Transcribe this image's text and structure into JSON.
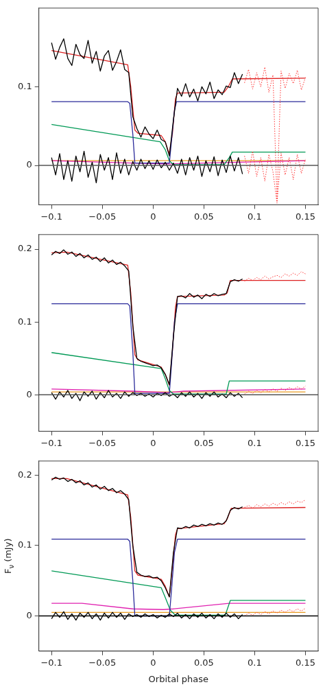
{
  "chart_data": [
    {
      "type": "line",
      "xlim": [
        -0.1125,
        0.1625
      ],
      "ylim": [
        -0.05,
        0.2
      ],
      "xticks": [
        -0.1,
        -0.05,
        0,
        0.05,
        0.1,
        0.15
      ],
      "yticks": [
        0,
        0.1
      ],
      "grid": false,
      "legend": false,
      "marker": "none",
      "ref_lines": [
        {
          "axis": "y",
          "value": 0,
          "color": "#555555"
        }
      ],
      "series": [
        {
          "color": "#000000",
          "line_style": "solid",
          "x": [
            -0.1,
            -0.096,
            -0.092,
            -0.088,
            -0.084,
            -0.08,
            -0.076,
            -0.072,
            -0.068,
            -0.064,
            -0.06,
            -0.056,
            -0.052,
            -0.048,
            -0.044,
            -0.04,
            -0.036,
            -0.032,
            -0.028,
            -0.024,
            -0.02,
            -0.016,
            -0.012,
            -0.008,
            -0.004,
            0,
            0.004,
            0.008,
            0.012,
            0.016,
            0.02,
            0.024,
            0.028,
            0.032,
            0.036,
            0.04,
            0.044,
            0.048,
            0.052,
            0.056,
            0.06,
            0.064,
            0.068,
            0.072,
            0.076,
            0.08,
            0.084,
            0.088
          ],
          "values": [
            0.156,
            0.135,
            0.15,
            0.161,
            0.136,
            0.127,
            0.154,
            0.141,
            0.136,
            0.159,
            0.13,
            0.145,
            0.12,
            0.139,
            0.146,
            0.121,
            0.132,
            0.147,
            0.122,
            0.118,
            0.062,
            0.047,
            0.036,
            0.049,
            0.04,
            0.034,
            0.045,
            0.033,
            0.03,
            0.012,
            0.058,
            0.098,
            0.088,
            0.104,
            0.087,
            0.097,
            0.082,
            0.1,
            0.091,
            0.106,
            0.085,
            0.096,
            0.09,
            0.101,
            0.099,
            0.118,
            0.104,
            0.116
          ]
        },
        {
          "color": "#ff3333",
          "line_style": "dotted",
          "x": [
            0.09,
            0.094,
            0.098,
            0.102,
            0.106,
            0.11,
            0.114,
            0.118,
            0.122,
            0.126,
            0.13,
            0.134,
            0.138,
            0.142,
            0.146,
            0.15
          ],
          "values": [
            0.105,
            0.122,
            0.097,
            0.118,
            0.1,
            0.125,
            0.093,
            0.115,
            -0.045,
            0.12,
            0.098,
            0.117,
            0.104,
            0.121,
            0.096,
            0.112
          ]
        },
        {
          "color": "#000000",
          "line_style": "solid",
          "x": [
            -0.1,
            -0.096,
            -0.092,
            -0.088,
            -0.084,
            -0.08,
            -0.076,
            -0.072,
            -0.068,
            -0.064,
            -0.06,
            -0.056,
            -0.052,
            -0.048,
            -0.044,
            -0.04,
            -0.036,
            -0.032,
            -0.028,
            -0.024,
            -0.02,
            -0.016,
            -0.012,
            -0.008,
            -0.004,
            0,
            0.004,
            0.008,
            0.012,
            0.016,
            0.02,
            0.024,
            0.028,
            0.032,
            0.036,
            0.04,
            0.044,
            0.048,
            0.052,
            0.056,
            0.06,
            0.064,
            0.068,
            0.072,
            0.076,
            0.08,
            0.084,
            0.088
          ],
          "values": [
            0.01,
            -0.012,
            0.015,
            -0.018,
            0.006,
            -0.02,
            0.012,
            -0.008,
            0.018,
            -0.015,
            0.004,
            -0.022,
            0.014,
            -0.006,
            0.01,
            -0.018,
            0.016,
            -0.01,
            0.008,
            -0.012,
            0.005,
            -0.006,
            0.008,
            -0.004,
            0.006,
            -0.005,
            0.007,
            -0.003,
            0.004,
            -0.006,
            0.003,
            -0.01,
            0.008,
            -0.012,
            0.01,
            -0.006,
            0.012,
            -0.014,
            0.006,
            -0.008,
            0.011,
            -0.013,
            0.007,
            -0.009,
            0.012,
            -0.007,
            0.01,
            -0.011
          ]
        },
        {
          "color": "#ff3333",
          "line_style": "dotted",
          "x": [
            0.09,
            0.094,
            0.098,
            0.102,
            0.106,
            0.11,
            0.114,
            0.118,
            0.122,
            0.126,
            0.13,
            0.134,
            0.138,
            0.142,
            0.146,
            0.15
          ],
          "values": [
            0.012,
            -0.01,
            0.018,
            -0.014,
            0.01,
            -0.02,
            0.014,
            -0.008,
            -0.048,
            0.016,
            -0.012,
            0.01,
            -0.018,
            0.014,
            -0.01,
            0.008
          ]
        },
        {
          "color": "#2a2a9a",
          "line_style": "solid",
          "x": [
            -0.1,
            -0.025,
            -0.023,
            -0.02,
            -0.018,
            0.016,
            0.018,
            0.021,
            0.023,
            0.15
          ],
          "values": [
            0.081,
            0.081,
            0.079,
            0.04,
            0.003,
            0.003,
            0.03,
            0.07,
            0.081,
            0.081
          ]
        },
        {
          "color": "#009955",
          "line_style": "solid",
          "x": [
            -0.1,
            0.007,
            0.012,
            0.016,
            0.02,
            0.07,
            0.075,
            0.078,
            0.15
          ],
          "values": [
            0.052,
            0.03,
            0.02,
            0.006,
            0.001,
            0.001,
            0.01,
            0.017,
            0.017
          ]
        },
        {
          "color": "#e020b0",
          "line_style": "solid",
          "x": [
            -0.1,
            -0.02,
            0.015,
            0.15
          ],
          "values": [
            0.006,
            0.003,
            0.002,
            0.006
          ]
        },
        {
          "color": "#e89a20",
          "line_style": "solid",
          "x": [
            -0.1,
            0.15
          ],
          "values": [
            0.006,
            0.006
          ]
        },
        {
          "color": "#dd2222",
          "line_style": "solid",
          "x": [
            -0.1,
            -0.025,
            -0.022,
            -0.018,
            -0.015,
            0.008,
            0.012,
            0.015,
            0.016,
            0.019,
            0.022,
            0.024,
            0.07,
            0.074,
            0.078,
            0.15
          ],
          "values": [
            0.146,
            0.128,
            0.1,
            0.045,
            0.041,
            0.038,
            0.03,
            0.018,
            0.016,
            0.04,
            0.085,
            0.092,
            0.093,
            0.1,
            0.11,
            0.111
          ]
        }
      ]
    },
    {
      "type": "line",
      "xlim": [
        -0.1125,
        0.1625
      ],
      "ylim": [
        -0.05,
        0.22
      ],
      "xticks": [
        -0.1,
        -0.05,
        0,
        0.05,
        0.1,
        0.15
      ],
      "yticks": [
        0,
        0.1,
        0.2
      ],
      "grid": false,
      "legend": false,
      "marker": "none",
      "ref_lines": [
        {
          "axis": "y",
          "value": 0,
          "color": "#555555"
        }
      ],
      "series": [
        {
          "color": "#000000",
          "line_style": "solid",
          "x": [
            -0.1,
            -0.096,
            -0.092,
            -0.088,
            -0.084,
            -0.08,
            -0.076,
            -0.072,
            -0.068,
            -0.064,
            -0.06,
            -0.056,
            -0.052,
            -0.048,
            -0.044,
            -0.04,
            -0.036,
            -0.032,
            -0.028,
            -0.024,
            -0.02,
            -0.016,
            -0.012,
            -0.008,
            -0.004,
            0,
            0.004,
            0.008,
            0.012,
            0.016,
            0.02,
            0.024,
            0.028,
            0.032,
            0.036,
            0.04,
            0.044,
            0.048,
            0.052,
            0.056,
            0.06,
            0.064,
            0.068,
            0.072,
            0.076,
            0.08,
            0.084,
            0.088
          ],
          "values": [
            0.192,
            0.197,
            0.194,
            0.199,
            0.193,
            0.196,
            0.19,
            0.194,
            0.188,
            0.192,
            0.186,
            0.189,
            0.183,
            0.188,
            0.181,
            0.185,
            0.179,
            0.182,
            0.177,
            0.17,
            0.095,
            0.05,
            0.046,
            0.044,
            0.042,
            0.04,
            0.041,
            0.037,
            0.028,
            0.014,
            0.08,
            0.135,
            0.136,
            0.133,
            0.139,
            0.134,
            0.137,
            0.132,
            0.138,
            0.135,
            0.139,
            0.136,
            0.138,
            0.139,
            0.155,
            0.158,
            0.156,
            0.159
          ]
        },
        {
          "color": "#ff3333",
          "line_style": "dotted",
          "x": [
            0.09,
            0.094,
            0.098,
            0.102,
            0.106,
            0.11,
            0.114,
            0.118,
            0.122,
            0.126,
            0.13,
            0.134,
            0.138,
            0.142,
            0.146,
            0.15
          ],
          "values": [
            0.156,
            0.16,
            0.157,
            0.161,
            0.158,
            0.163,
            0.159,
            0.162,
            0.164,
            0.161,
            0.166,
            0.163,
            0.167,
            0.164,
            0.169,
            0.166
          ]
        },
        {
          "color": "#000000",
          "line_style": "solid",
          "x": [
            -0.1,
            -0.096,
            -0.092,
            -0.088,
            -0.084,
            -0.08,
            -0.076,
            -0.072,
            -0.068,
            -0.064,
            -0.06,
            -0.056,
            -0.052,
            -0.048,
            -0.044,
            -0.04,
            -0.036,
            -0.032,
            -0.028,
            -0.024,
            -0.02,
            -0.016,
            -0.012,
            -0.008,
            -0.004,
            0,
            0.004,
            0.008,
            0.012,
            0.016,
            0.02,
            0.024,
            0.028,
            0.032,
            0.036,
            0.04,
            0.044,
            0.048,
            0.052,
            0.056,
            0.06,
            0.064,
            0.068,
            0.072,
            0.076,
            0.08,
            0.084,
            0.088
          ],
          "values": [
            0.003,
            -0.006,
            0.004,
            -0.003,
            0.006,
            -0.005,
            0.002,
            -0.008,
            0.004,
            -0.002,
            0.005,
            -0.006,
            0.003,
            -0.004,
            0.006,
            -0.003,
            0.002,
            -0.005,
            0.004,
            -0.002,
            0.003,
            -0.001,
            0.002,
            -0.002,
            0.001,
            -0.003,
            0.002,
            -0.001,
            0.003,
            -0.002,
            0.001,
            -0.004,
            0.003,
            -0.002,
            0.004,
            -0.003,
            0.002,
            -0.005,
            0.003,
            -0.002,
            0.004,
            -0.003,
            0.001,
            -0.004,
            0.003,
            -0.002,
            0.002,
            -0.004
          ]
        },
        {
          "color": "#ff3333",
          "line_style": "dotted",
          "x": [
            0.09,
            0.094,
            0.098,
            0.102,
            0.106,
            0.11,
            0.114,
            0.118,
            0.122,
            0.126,
            0.13,
            0.134,
            0.138,
            0.142,
            0.146,
            0.15
          ],
          "values": [
            0.001,
            0.005,
            0.002,
            0.006,
            0.003,
            0.007,
            0.004,
            0.008,
            0.005,
            0.009,
            0.006,
            0.01,
            0.007,
            0.011,
            0.008,
            0.012
          ]
        },
        {
          "color": "#2a2a9a",
          "line_style": "solid",
          "x": [
            -0.1,
            -0.025,
            -0.023,
            -0.02,
            -0.018,
            0.016,
            0.018,
            0.021,
            0.024,
            0.15
          ],
          "values": [
            0.125,
            0.125,
            0.122,
            0.06,
            0.002,
            0.002,
            0.04,
            0.1,
            0.125,
            0.125
          ]
        },
        {
          "color": "#009955",
          "line_style": "solid",
          "x": [
            -0.1,
            0.008,
            0.012,
            0.016,
            0.02,
            0.072,
            0.075,
            0.15
          ],
          "values": [
            0.058,
            0.036,
            0.022,
            0.006,
            0.001,
            0.001,
            0.019,
            0.019
          ]
        },
        {
          "color": "#e020b0",
          "line_style": "solid",
          "x": [
            -0.1,
            -0.02,
            0.015,
            0.03,
            0.15
          ],
          "values": [
            0.008,
            0.005,
            0.003,
            0.005,
            0.008
          ]
        },
        {
          "color": "#e89a20",
          "line_style": "solid",
          "x": [
            -0.1,
            0.15
          ],
          "values": [
            0.004,
            0.004
          ]
        },
        {
          "color": "#dd2222",
          "line_style": "solid",
          "x": [
            -0.1,
            -0.085,
            -0.025,
            -0.022,
            -0.018,
            -0.015,
            0.008,
            0.012,
            0.016,
            0.019,
            0.022,
            0.024,
            0.07,
            0.073,
            0.076,
            0.15
          ],
          "values": [
            0.195,
            0.196,
            0.178,
            0.14,
            0.055,
            0.048,
            0.038,
            0.028,
            0.013,
            0.06,
            0.12,
            0.135,
            0.137,
            0.14,
            0.157,
            0.157
          ]
        }
      ]
    },
    {
      "type": "line",
      "xlim": [
        -0.1125,
        0.1625
      ],
      "ylim": [
        -0.05,
        0.22
      ],
      "xlabel": "Orbital phase",
      "ylabel": "F$_{ν}$ (mJy)",
      "xticks": [
        -0.1,
        -0.05,
        0,
        0.05,
        0.1,
        0.15
      ],
      "yticks": [
        0,
        0.1,
        0.2
      ],
      "grid": false,
      "legend": false,
      "marker": "none",
      "ref_lines": [
        {
          "axis": "y",
          "value": 0,
          "color": "#000000"
        }
      ],
      "series": [
        {
          "color": "#000000",
          "line_style": "solid",
          "x": [
            -0.1,
            -0.096,
            -0.092,
            -0.088,
            -0.084,
            -0.08,
            -0.076,
            -0.072,
            -0.068,
            -0.064,
            -0.06,
            -0.056,
            -0.052,
            -0.048,
            -0.044,
            -0.04,
            -0.036,
            -0.032,
            -0.028,
            -0.024,
            -0.02,
            -0.016,
            -0.012,
            -0.008,
            -0.004,
            0,
            0.004,
            0.008,
            0.012,
            0.016,
            0.02,
            0.024,
            0.028,
            0.032,
            0.036,
            0.04,
            0.044,
            0.048,
            0.052,
            0.056,
            0.06,
            0.064,
            0.068,
            0.072,
            0.076,
            0.08,
            0.084,
            0.088
          ],
          "values": [
            0.193,
            0.197,
            0.194,
            0.196,
            0.191,
            0.194,
            0.189,
            0.192,
            0.186,
            0.189,
            0.183,
            0.186,
            0.18,
            0.184,
            0.178,
            0.181,
            0.175,
            0.178,
            0.173,
            0.165,
            0.1,
            0.062,
            0.058,
            0.056,
            0.057,
            0.054,
            0.055,
            0.05,
            0.04,
            0.027,
            0.09,
            0.125,
            0.124,
            0.127,
            0.125,
            0.129,
            0.127,
            0.13,
            0.128,
            0.131,
            0.129,
            0.132,
            0.13,
            0.135,
            0.15,
            0.154,
            0.152,
            0.155
          ]
        },
        {
          "color": "#ff3333",
          "line_style": "dotted",
          "x": [
            0.09,
            0.094,
            0.098,
            0.102,
            0.106,
            0.11,
            0.114,
            0.118,
            0.122,
            0.126,
            0.13,
            0.134,
            0.138,
            0.142,
            0.146,
            0.15
          ],
          "values": [
            0.154,
            0.157,
            0.153,
            0.158,
            0.155,
            0.159,
            0.156,
            0.16,
            0.157,
            0.161,
            0.158,
            0.162,
            0.159,
            0.163,
            0.161,
            0.165
          ]
        },
        {
          "color": "#000000",
          "line_style": "solid",
          "x": [
            -0.1,
            -0.096,
            -0.092,
            -0.088,
            -0.084,
            -0.08,
            -0.076,
            -0.072,
            -0.068,
            -0.064,
            -0.06,
            -0.056,
            -0.052,
            -0.048,
            -0.044,
            -0.04,
            -0.036,
            -0.032,
            -0.028,
            -0.024,
            -0.02,
            -0.016,
            -0.012,
            -0.008,
            -0.004,
            0,
            0.004,
            0.008,
            0.012,
            0.016,
            0.02,
            0.024,
            0.028,
            0.032,
            0.036,
            0.04,
            0.044,
            0.048,
            0.052,
            0.056,
            0.06,
            0.064,
            0.068,
            0.072,
            0.076,
            0.08,
            0.084,
            0.088
          ],
          "values": [
            -0.004,
            0.005,
            -0.002,
            0.006,
            -0.005,
            0.003,
            -0.006,
            0.004,
            -0.002,
            0.005,
            -0.004,
            0.003,
            -0.006,
            0.004,
            -0.003,
            0.005,
            -0.002,
            0.004,
            -0.005,
            0.003,
            -0.001,
            0.002,
            -0.002,
            0.003,
            -0.001,
            0.002,
            -0.003,
            0.001,
            -0.002,
            0.003,
            -0.001,
            0.004,
            -0.003,
            0.002,
            -0.004,
            0.003,
            -0.002,
            0.004,
            -0.003,
            0.002,
            -0.004,
            0.003,
            -0.002,
            0.004,
            -0.002,
            0.003,
            -0.004,
            0.002
          ]
        },
        {
          "color": "#ff3333",
          "line_style": "dotted",
          "x": [
            0.09,
            0.094,
            0.098,
            0.102,
            0.106,
            0.11,
            0.114,
            0.118,
            0.122,
            0.126,
            0.13,
            0.134,
            0.138,
            0.142,
            0.146,
            0.15
          ],
          "values": [
            0.0,
            0.004,
            0.001,
            0.005,
            0.002,
            0.006,
            0.003,
            0.007,
            0.004,
            0.008,
            0.005,
            0.009,
            0.006,
            0.01,
            0.007,
            0.011
          ]
        },
        {
          "color": "#2a2a9a",
          "line_style": "solid",
          "x": [
            -0.1,
            -0.025,
            -0.023,
            -0.02,
            -0.018,
            0.016,
            0.018,
            0.021,
            0.024,
            0.15
          ],
          "values": [
            0.109,
            0.109,
            0.106,
            0.05,
            0.0,
            0.0,
            0.035,
            0.09,
            0.109,
            0.109
          ]
        },
        {
          "color": "#009955",
          "line_style": "solid",
          "x": [
            -0.1,
            0.008,
            0.012,
            0.017,
            0.022,
            0.071,
            0.076,
            0.15
          ],
          "values": [
            0.064,
            0.04,
            0.026,
            0.008,
            0.001,
            0.001,
            0.022,
            0.022
          ]
        },
        {
          "color": "#e020b0",
          "line_style": "solid",
          "x": [
            -0.1,
            -0.07,
            -0.02,
            0.01,
            0.02,
            0.075,
            0.15
          ],
          "values": [
            0.018,
            0.018,
            0.01,
            0.009,
            0.01,
            0.018,
            0.018
          ]
        },
        {
          "color": "#e89a20",
          "line_style": "solid",
          "x": [
            -0.1,
            0.15
          ],
          "values": [
            0.005,
            0.005
          ]
        },
        {
          "color": "#dd2222",
          "line_style": "solid",
          "x": [
            -0.1,
            -0.085,
            -0.025,
            -0.022,
            -0.018,
            -0.015,
            0.008,
            0.012,
            0.016,
            0.019,
            0.022,
            0.024,
            0.07,
            0.073,
            0.077,
            0.15
          ],
          "values": [
            0.195,
            0.195,
            0.172,
            0.14,
            0.064,
            0.058,
            0.052,
            0.042,
            0.027,
            0.07,
            0.115,
            0.124,
            0.131,
            0.138,
            0.153,
            0.154
          ]
        }
      ]
    }
  ]
}
